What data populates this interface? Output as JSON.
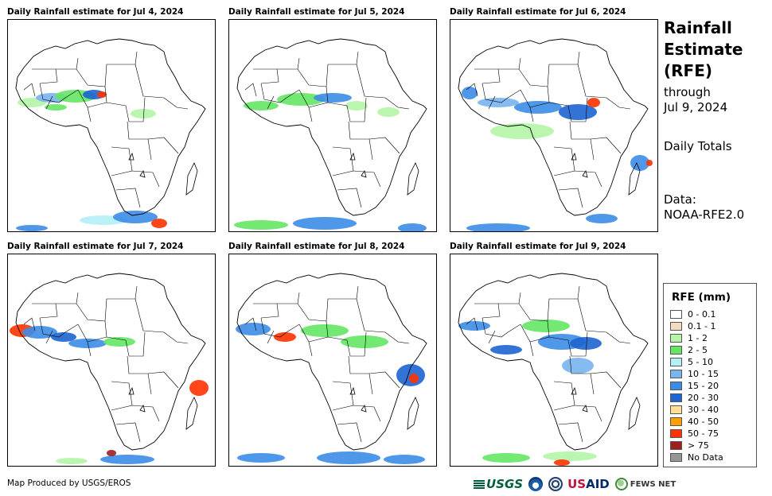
{
  "panels": [
    {
      "title": "Daily Rainfall estimate for Jul 4, 2024"
    },
    {
      "title": "Daily Rainfall estimate for Jul 5, 2024"
    },
    {
      "title": "Daily Rainfall estimate for Jul 6, 2024"
    },
    {
      "title": "Daily Rainfall estimate for Jul 7, 2024"
    },
    {
      "title": "Daily Rainfall estimate for Jul 8, 2024"
    },
    {
      "title": "Daily Rainfall estimate for Jul 9, 2024"
    }
  ],
  "side": {
    "title_line1": "Rainfall",
    "title_line2": "Estimate",
    "title_line3": "(RFE)",
    "through_line1": "through",
    "through_line2": "Jul 9, 2024",
    "daily_totals": "Daily Totals",
    "data_line1": "Data:",
    "data_line2": "NOAA-RFE2.0"
  },
  "legend": {
    "title": "RFE (mm)",
    "items": [
      {
        "label": "0 - 0.1",
        "color": "#ffffff"
      },
      {
        "label": "0.1 - 1",
        "color": "#f2dcc0"
      },
      {
        "label": "1 - 2",
        "color": "#b4f5a8"
      },
      {
        "label": "2 - 5",
        "color": "#64e664"
      },
      {
        "label": "5 - 10",
        "color": "#b4f0f5"
      },
      {
        "label": "10 - 15",
        "color": "#78b4f0"
      },
      {
        "label": "15 - 20",
        "color": "#3c8ce6"
      },
      {
        "label": "20 - 30",
        "color": "#1e64d2"
      },
      {
        "label": "30 - 40",
        "color": "#ffe196"
      },
      {
        "label": "40 - 50",
        "color": "#ffa000"
      },
      {
        "label": "50 - 75",
        "color": "#ff3200"
      },
      {
        "label": "> 75",
        "color": "#a01e1e"
      },
      {
        "label": "No Data",
        "color": "#969696"
      }
    ]
  },
  "footer": {
    "credit": "Map Produced by USGS/EROS",
    "logo_usgs": "USGS",
    "logo_usaid_a": "US",
    "logo_usaid_b": "AID",
    "logo_fews": "FEWS NET"
  }
}
